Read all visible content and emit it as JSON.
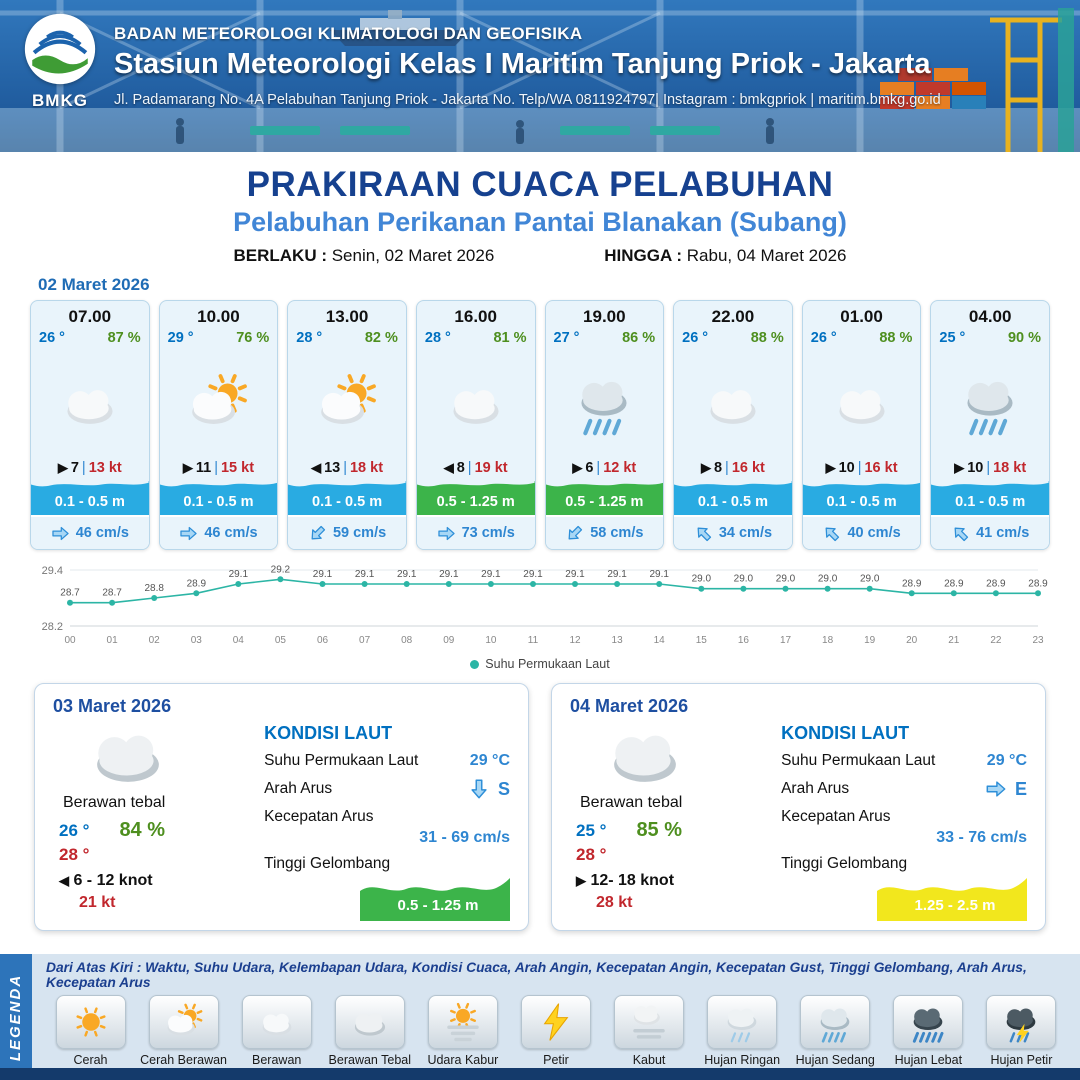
{
  "colors": {
    "header_bg": "#2a6ab1",
    "title": "#16418f",
    "subtitle": "#4186d6",
    "temp_blue": "#0070c0",
    "humidity_green": "#4e8f1f",
    "gust_red": "#c1272d",
    "wave_blue": "#29abe2",
    "wave_green": "#3cb44a",
    "wave_yellow": "#f2e71d",
    "chart_line": "#2cb5a5"
  },
  "header": {
    "logo": "BMKG",
    "agency": "BADAN METEOROLOGI KLIMATOLOGI DAN GEOFISIKA",
    "station": "Stasiun Meteorologi Kelas I Maritim Tanjung Priok - Jakarta",
    "address": "Jl. Padamarang No. 4A Pelabuhan Tanjung Priok - Jakarta No. Telp/WA 0811924797| Instagram : bmkgpriok | maritim.bmkg.go.id"
  },
  "title": {
    "main": "PRAKIRAAN CUACA PELABUHAN",
    "subtitle": "Pelabuhan Perikanan Pantai Blanakan (Subang)",
    "valid_label": "BERLAKU :",
    "valid_value": "Senin, 02 Maret 2026",
    "until_label": "HINGGA :",
    "until_value": "Rabu, 04 Maret 2026"
  },
  "forecast": {
    "date": "02 Maret 2026",
    "cards": [
      {
        "time": "07.00",
        "temp": "26 °",
        "humidity": "87 %",
        "icon": "cloud",
        "wind_arrow": "right",
        "wind_speed": "7",
        "gust": "13 kt",
        "wave": "0.1 - 0.5 m",
        "wave_color": "blue",
        "current_angle": 0,
        "current_speed": "46 cm/s"
      },
      {
        "time": "10.00",
        "temp": "29 °",
        "humidity": "76 %",
        "icon": "sun-cloud",
        "wind_arrow": "right",
        "wind_speed": "11",
        "gust": "15 kt",
        "wave": "0.1 - 0.5 m",
        "wave_color": "blue",
        "current_angle": 0,
        "current_speed": "46 cm/s"
      },
      {
        "time": "13.00",
        "temp": "28 °",
        "humidity": "82 %",
        "icon": "sun-cloud",
        "wind_arrow": "left",
        "wind_speed": "13",
        "gust": "18 kt",
        "wave": "0.1 - 0.5 m",
        "wave_color": "blue",
        "current_angle": 135,
        "current_speed": "59 cm/s"
      },
      {
        "time": "16.00",
        "temp": "28 °",
        "humidity": "81 %",
        "icon": "cloud",
        "wind_arrow": "left",
        "wind_speed": "8",
        "gust": "19 kt",
        "wave": "0.5 - 1.25 m",
        "wave_color": "green",
        "current_angle": 0,
        "current_speed": "73 cm/s"
      },
      {
        "time": "19.00",
        "temp": "27 °",
        "humidity": "86 %",
        "icon": "rain-medium",
        "wind_arrow": "right",
        "wind_speed": "6",
        "gust": "12 kt",
        "wave": "0.5 - 1.25 m",
        "wave_color": "green",
        "current_angle": 135,
        "current_speed": "58 cm/s"
      },
      {
        "time": "22.00",
        "temp": "26 °",
        "humidity": "88 %",
        "icon": "cloud",
        "wind_arrow": "right",
        "wind_speed": "8",
        "gust": "16 kt",
        "wave": "0.1 - 0.5 m",
        "wave_color": "blue",
        "current_angle": 225,
        "current_speed": "34 cm/s"
      },
      {
        "time": "01.00",
        "temp": "26 °",
        "humidity": "88 %",
        "icon": "cloud",
        "wind_arrow": "right",
        "wind_speed": "10",
        "gust": "16 kt",
        "wave": "0.1 - 0.5 m",
        "wave_color": "blue",
        "current_angle": 225,
        "current_speed": "40 cm/s"
      },
      {
        "time": "04.00",
        "temp": "25 °",
        "humidity": "90 %",
        "icon": "rain-medium",
        "wind_arrow": "right",
        "wind_speed": "10",
        "gust": "18 kt",
        "wave": "0.1 - 0.5 m",
        "wave_color": "blue",
        "current_angle": 225,
        "current_speed": "41 cm/s"
      }
    ]
  },
  "chart_data": {
    "type": "line",
    "title": "",
    "xlabel": "",
    "ylabel": "",
    "x": [
      "00",
      "01",
      "02",
      "03",
      "04",
      "05",
      "06",
      "07",
      "08",
      "09",
      "10",
      "11",
      "12",
      "13",
      "14",
      "15",
      "16",
      "17",
      "18",
      "19",
      "20",
      "21",
      "22",
      "23"
    ],
    "values": [
      28.7,
      28.7,
      28.8,
      28.9,
      29.1,
      29.2,
      29.1,
      29.1,
      29.1,
      29.1,
      29.1,
      29.1,
      29.1,
      29.1,
      29.1,
      29.0,
      29.0,
      29.0,
      29.0,
      29.0,
      28.9,
      28.9,
      28.9,
      28.9
    ],
    "ylim": [
      28.2,
      29.4
    ],
    "grid": "minimal",
    "legend_position": "bottom",
    "series_label": "Suhu Permukaan Laut",
    "line_color": "#2cb5a5"
  },
  "daily": [
    {
      "date": "03 Maret 2026",
      "condition": "Berawan tebal",
      "icon": "cloud-thick",
      "temp_min": "26 °",
      "humidity": "84 %",
      "temp_max": "28 °",
      "wind_arrow": "left",
      "wind_range": "6  - 12 knot",
      "gust": "21 kt",
      "sea_title": "KONDISI LAUT",
      "sst_label": "Suhu Permukaan Laut",
      "sst": "29 °C",
      "dir_label": "Arah Arus",
      "dir_letter": "S",
      "dir_angle": 90,
      "speed_label": "Kecepatan Arus",
      "speed": "31 - 69 cm/s",
      "wave_label": "Tinggi Gelombang",
      "wave": "0.5 - 1.25 m",
      "wave_color": "#3cb44a"
    },
    {
      "date": "04 Maret 2026",
      "condition": "Berawan tebal",
      "icon": "cloud-thick",
      "temp_min": "25 °",
      "humidity": "85 %",
      "temp_max": "28 °",
      "wind_arrow": "right",
      "wind_range": "12- 18 knot",
      "gust": "28 kt",
      "sea_title": "KONDISI LAUT",
      "sst_label": "Suhu Permukaan Laut",
      "sst": "29 °C",
      "dir_label": "Arah Arus",
      "dir_letter": "E",
      "dir_angle": 0,
      "speed_label": "Kecepatan Arus",
      "speed": "33 - 76 cm/s",
      "wave_label": "Tinggi Gelombang",
      "wave": "1.25 - 2.5 m",
      "wave_color": "#f2e71d"
    }
  ],
  "legend": {
    "strip": "LEGENDA",
    "header": "Dari Atas Kiri : Waktu, Suhu Udara, Kelembapan Udara, Kondisi Cuaca, Arah Angin, Kecepatan Angin, Kecepatan Gust, Tinggi Gelombang, Arah Arus, Kecepatan Arus",
    "items": [
      {
        "icon": "sun",
        "label": "Cerah"
      },
      {
        "icon": "sun-cloud",
        "label": "Cerah Berawan"
      },
      {
        "icon": "cloud",
        "label": "Berawan"
      },
      {
        "icon": "cloud-thick",
        "label": "Berawan Tebal"
      },
      {
        "icon": "haze-sun",
        "label": "Udara Kabur"
      },
      {
        "icon": "lightning",
        "label": "Petir"
      },
      {
        "icon": "fog",
        "label": "Kabut"
      },
      {
        "icon": "rain-light",
        "label": "Hujan Ringan"
      },
      {
        "icon": "rain-medium",
        "label": "Hujan Sedang"
      },
      {
        "icon": "rain-heavy",
        "label": "Hujan Lebat"
      },
      {
        "icon": "rain-thunder",
        "label": "Hujan Petir"
      }
    ]
  }
}
